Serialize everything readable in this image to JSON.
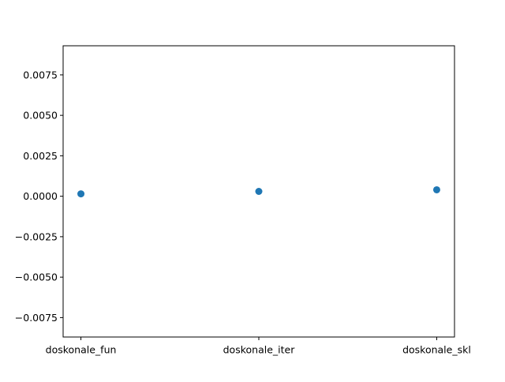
{
  "chart_data": {
    "type": "scatter",
    "title": "",
    "xlabel": "",
    "ylabel": "",
    "categories": [
      "doskonale_fun",
      "doskonale_iter",
      "doskonale_skl"
    ],
    "series": [
      {
        "values": [
          0.00015,
          0.0003,
          0.0004
        ],
        "color": "#1f77b4"
      }
    ],
    "ylim": [
      -0.0087,
      0.0093
    ],
    "yticks": [
      -0.0075,
      -0.005,
      -0.0025,
      0.0,
      0.0025,
      0.005,
      0.0075
    ],
    "ytick_labels": [
      "−0.0075",
      "−0.0050",
      "−0.0025",
      "0.0000",
      "0.0025",
      "0.0050",
      "0.0075"
    ],
    "grid": false,
    "legend": "none"
  }
}
